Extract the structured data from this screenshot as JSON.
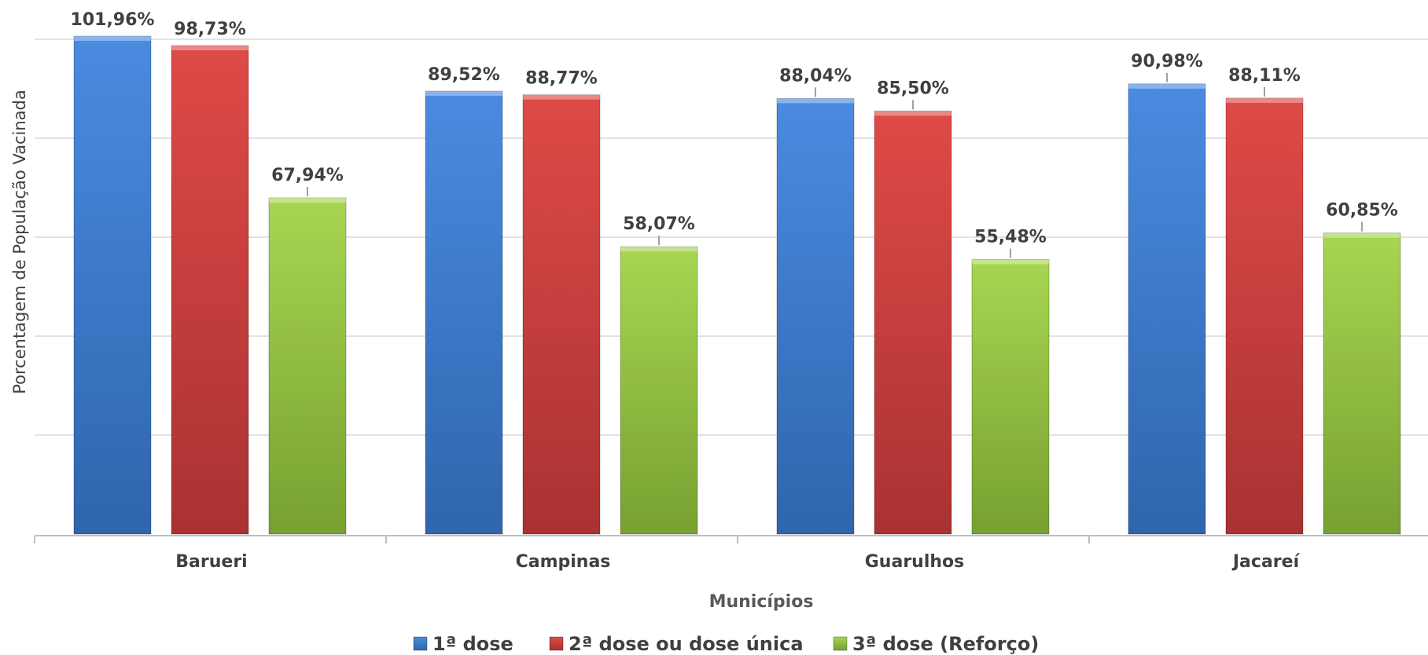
{
  "chart_data": {
    "type": "bar",
    "xlabel": "Municípios",
    "ylabel": "Porcentagem de População Vacinada",
    "categories": [
      "Barueri",
      "Campinas",
      "Guarulhos",
      "Jacareí"
    ],
    "series": [
      {
        "name": "1ª dose",
        "values": [
          101.96,
          89.52,
          88.04,
          90.98
        ],
        "labels": [
          "101,96%",
          "89,52%",
          "88,04%",
          "90,98%"
        ],
        "color": "#3f7fd6"
      },
      {
        "name": "2ª dose ou dose única",
        "values": [
          98.73,
          88.77,
          85.5,
          88.11
        ],
        "labels": [
          "98,73%",
          "88,77%",
          "85,50%",
          "88,11%"
        ],
        "color": "#d93f3f"
      },
      {
        "name": "3ª dose (Reforço)",
        "values": [
          67.94,
          58.07,
          55.48,
          60.85
        ],
        "labels": [
          "67,94%",
          "58,07%",
          "55,48%",
          "60,85%"
        ],
        "color": "#9ccd45"
      }
    ],
    "ylim": [
      0,
      100
    ],
    "grid": true,
    "legend": "bottom"
  }
}
